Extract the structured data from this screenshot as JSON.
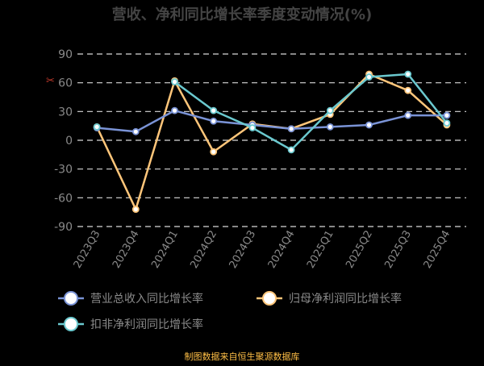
{
  "chart_data": {
    "type": "line",
    "title": "营收、净利同比增长率季度变动情况(%)",
    "source": "制图数据来自恒生聚源数据库",
    "categories": [
      "2023Q3",
      "2023Q4",
      "2024Q1",
      "2024Q2",
      "2024Q3",
      "2024Q4",
      "2025Q1",
      "2025Q2",
      "2025Q3",
      "2025Q4"
    ],
    "ylim": [
      -90,
      90
    ],
    "yticks": [
      90,
      60,
      30,
      0,
      -30,
      -60,
      -90
    ],
    "grid": true,
    "legend_position": "bottom",
    "series": [
      {
        "name": "营业总收入同比增长率",
        "color": "#7a93d6",
        "values": [
          13,
          9,
          31,
          20,
          16,
          12,
          14,
          16,
          26,
          26
        ]
      },
      {
        "name": "归母净利润同比增长率",
        "color": "#ffc67a",
        "values": [
          14,
          -72,
          62,
          -12,
          17,
          12,
          27,
          69,
          52,
          16
        ]
      },
      {
        "name": "扣非净利润同比增长率",
        "color": "#6bc9cf",
        "values": [
          14,
          null,
          61,
          31,
          13,
          -10,
          31,
          66,
          69,
          18
        ]
      }
    ]
  },
  "icons": {
    "axis_marker": "scissors-icon"
  }
}
